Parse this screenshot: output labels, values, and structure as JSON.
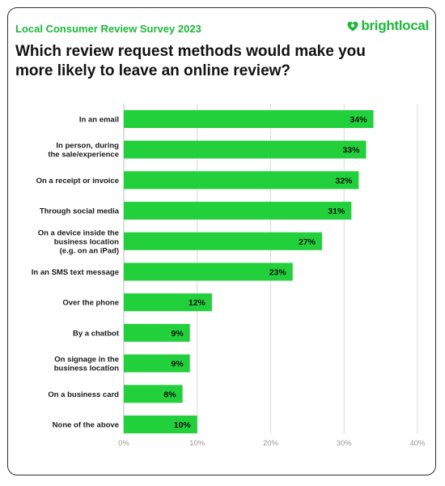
{
  "header": {
    "survey_label": "Local Consumer Review Survey 2023",
    "brand_name": "brightlocal",
    "brand_icon": "heart-icon"
  },
  "colors": {
    "accent": "#1db83a",
    "bar": "#22d03c",
    "text": "#121212",
    "grid": "#d9d9d9"
  },
  "chart_data": {
    "type": "bar",
    "orientation": "horizontal",
    "title": "Which review request methods would make you more likely to leave an online review?",
    "categories": [
      [
        "In an email"
      ],
      [
        "In person, during",
        "the sale/experience"
      ],
      [
        "On a receipt or invoice"
      ],
      [
        "Through social media"
      ],
      [
        "On a device inside the",
        "business location",
        "(e.g. on an iPad)"
      ],
      [
        "In an SMS text message"
      ],
      [
        "Over the phone"
      ],
      [
        "By a chatbot"
      ],
      [
        "On signage in the",
        "business location"
      ],
      [
        "On a business card"
      ],
      [
        "None of the above"
      ]
    ],
    "values": [
      34,
      33,
      32,
      31,
      27,
      23,
      12,
      9,
      9,
      8,
      10
    ],
    "value_labels": [
      "34%",
      "33%",
      "32%",
      "31%",
      "27%",
      "23%",
      "12%",
      "9%",
      "9%",
      "8%",
      "10%"
    ],
    "xlim": [
      0,
      40
    ],
    "xticks": [
      0,
      10,
      20,
      30,
      40
    ],
    "xtick_labels": [
      "0%",
      "10%",
      "20%",
      "30%",
      "40%"
    ],
    "grid": true,
    "legend": "none"
  }
}
